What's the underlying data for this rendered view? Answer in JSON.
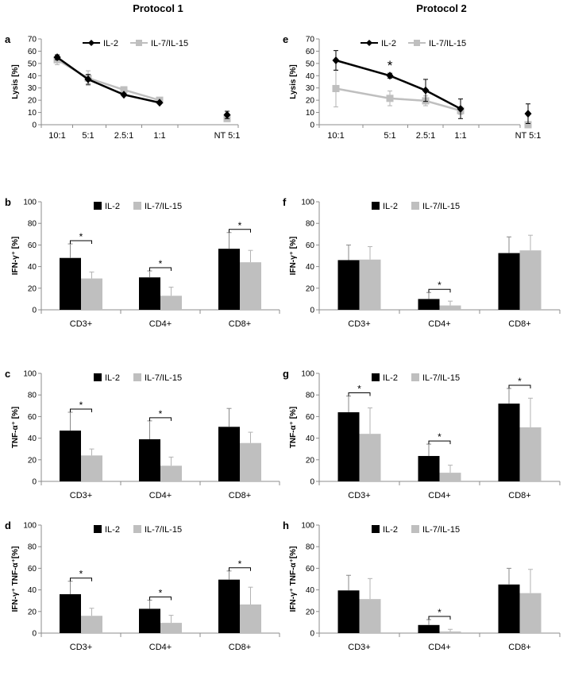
{
  "titles": [
    "Protocol 1",
    "Protocol 2"
  ],
  "colors": {
    "il2": "#000000",
    "il715": "#bfbfbf",
    "err": "#b3b3b3"
  },
  "chart_data": [
    {
      "id": "a",
      "type": "line",
      "panel_label": "a",
      "ylabel": "Lysis [%]",
      "ylim": [
        0,
        70
      ],
      "yticks": [
        0,
        10,
        20,
        30,
        40,
        50,
        60,
        70
      ],
      "categories": [
        "10:1",
        "5:1",
        "2.5:1",
        "1:1",
        "NT 5:1"
      ],
      "legend": [
        "IL-2",
        "IL-7/IL-15"
      ],
      "series": [
        {
          "name": "IL-2",
          "values": [
            55,
            37,
            24.5,
            18,
            8
          ],
          "errors": [
            2,
            4,
            1,
            1,
            3
          ]
        },
        {
          "name": "IL-7/IL-15",
          "values": [
            53,
            38,
            28.5,
            20,
            5
          ],
          "errors": [
            4,
            6,
            2,
            1,
            2
          ]
        }
      ],
      "annotations": []
    },
    {
      "id": "e",
      "type": "line",
      "panel_label": "e",
      "ylabel": "Lysis [%]",
      "ylim": [
        0,
        70
      ],
      "yticks": [
        0,
        10,
        20,
        30,
        40,
        50,
        60,
        70
      ],
      "categories": [
        "10:1",
        "5:1",
        "2.5:1",
        "1:1",
        "NT 5:1"
      ],
      "legend": [
        "IL-2",
        "IL-7/IL-15"
      ],
      "series": [
        {
          "name": "IL-2",
          "values": [
            52.5,
            40,
            28,
            13,
            9
          ],
          "errors": [
            8,
            2,
            9,
            8,
            8
          ]
        },
        {
          "name": "IL-7/IL-15",
          "values": [
            29.5,
            21.5,
            19.5,
            11.5,
            0
          ],
          "errors": [
            15,
            6,
            4,
            3,
            0
          ]
        }
      ],
      "annotations": [
        {
          "text": "*",
          "at": 1
        }
      ]
    },
    {
      "id": "b",
      "type": "bar",
      "panel_label": "b",
      "ylabel": "IFN-γ⁺ [%]",
      "ylim": [
        0,
        100
      ],
      "yticks": [
        0,
        20,
        40,
        60,
        80,
        100
      ],
      "categories": [
        "CD3+",
        "CD4+",
        "CD8+"
      ],
      "legend": [
        "IL-2",
        "IL-7/IL-15"
      ],
      "series": [
        {
          "name": "IL-2",
          "values": [
            48,
            30,
            56.5
          ],
          "errors": [
            13,
            6,
            15
          ]
        },
        {
          "name": "IL-7/IL-15",
          "values": [
            29,
            13,
            44
          ],
          "errors": [
            6,
            8,
            11
          ]
        }
      ],
      "significant": [
        0,
        1,
        2
      ],
      "sig_mark": "*"
    },
    {
      "id": "f",
      "type": "bar",
      "panel_label": "f",
      "ylabel": "IFN-γ⁺ [%]",
      "ylim": [
        0,
        100
      ],
      "yticks": [
        0,
        20,
        40,
        60,
        80,
        100
      ],
      "categories": [
        "CD3+",
        "CD4+",
        "CD8+"
      ],
      "legend": [
        "IL-2",
        "IL-7/IL-15"
      ],
      "series": [
        {
          "name": "IL-2",
          "values": [
            46,
            10,
            52.5
          ],
          "errors": [
            14,
            6,
            15
          ]
        },
        {
          "name": "IL-7/IL-15",
          "values": [
            46.5,
            4,
            55
          ],
          "errors": [
            12,
            4,
            14
          ]
        }
      ],
      "significant": [
        1
      ],
      "sig_mark": "*"
    },
    {
      "id": "c",
      "type": "bar",
      "panel_label": "c",
      "ylabel": "TNF-α⁺ [%]",
      "ylim": [
        0,
        100
      ],
      "yticks": [
        0,
        20,
        40,
        60,
        80,
        100
      ],
      "categories": [
        "CD3+",
        "CD4+",
        "CD8+"
      ],
      "legend": [
        "IL-2",
        "IL-7/IL-15"
      ],
      "series": [
        {
          "name": "IL-2",
          "values": [
            47,
            39,
            50.5
          ],
          "errors": [
            17,
            17,
            17
          ]
        },
        {
          "name": "IL-7/IL-15",
          "values": [
            24,
            14.5,
            35.5
          ],
          "errors": [
            6,
            8,
            10
          ]
        }
      ],
      "significant": [
        0,
        1
      ],
      "sig_mark": "*"
    },
    {
      "id": "g",
      "type": "bar",
      "panel_label": "g",
      "ylabel": "TNF-α⁺ [%]",
      "ylim": [
        0,
        100
      ],
      "yticks": [
        0,
        20,
        40,
        60,
        80,
        100
      ],
      "categories": [
        "CD3+",
        "CD4+",
        "CD8+"
      ],
      "legend": [
        "IL-2",
        "IL-7/IL-15"
      ],
      "series": [
        {
          "name": "IL-2",
          "values": [
            64,
            23.5,
            72
          ],
          "errors": [
            15,
            11,
            14
          ]
        },
        {
          "name": "IL-7/IL-15",
          "values": [
            44,
            8,
            50
          ],
          "errors": [
            24,
            7,
            27
          ]
        }
      ],
      "significant": [
        0,
        1,
        2
      ],
      "sig_mark": "*"
    },
    {
      "id": "d",
      "type": "bar",
      "panel_label": "d",
      "ylabel": "IFN-γ⁺ TNF-α⁺[%]",
      "ylim": [
        0,
        100
      ],
      "yticks": [
        0,
        20,
        40,
        60,
        80,
        100
      ],
      "categories": [
        "CD3+",
        "CD4+",
        "CD8+"
      ],
      "legend": [
        "IL-2",
        "IL-7/IL-15"
      ],
      "series": [
        {
          "name": "IL-2",
          "values": [
            36,
            22.5,
            49.5
          ],
          "errors": [
            12,
            8,
            8
          ]
        },
        {
          "name": "IL-7/IL-15",
          "values": [
            16,
            9.5,
            26.5
          ],
          "errors": [
            7,
            7,
            16
          ]
        }
      ],
      "significant": [
        0,
        1,
        2
      ],
      "sig_mark": "*"
    },
    {
      "id": "h",
      "type": "bar",
      "panel_label": "h",
      "ylabel": "IFN-γ⁺ TNF-α⁺[%]",
      "ylim": [
        0,
        100
      ],
      "yticks": [
        0,
        20,
        40,
        60,
        80,
        100
      ],
      "categories": [
        "CD3+",
        "CD4+",
        "CD8+"
      ],
      "legend": [
        "IL-2",
        "IL-7/IL-15"
      ],
      "series": [
        {
          "name": "IL-2",
          "values": [
            39.5,
            7.5,
            45
          ],
          "errors": [
            14,
            5,
            15
          ]
        },
        {
          "name": "IL-7/IL-15",
          "values": [
            31.5,
            1.5,
            37
          ],
          "errors": [
            19,
            2,
            22
          ]
        }
      ],
      "significant": [
        1
      ],
      "sig_mark": "*"
    }
  ]
}
